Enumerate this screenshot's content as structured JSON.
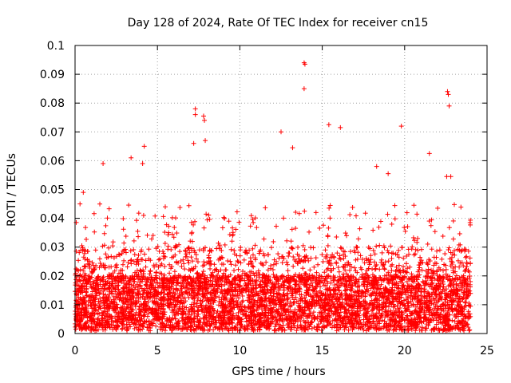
{
  "chart_data": {
    "type": "scatter",
    "title": "Day 128 of 2024, Rate Of TEC Index for receiver cn15",
    "xlabel": "GPS time / hours",
    "ylabel": "ROTI / TECUs",
    "xlim": [
      0,
      25
    ],
    "ylim": [
      0,
      0.1
    ],
    "grid": true,
    "marker": "plus",
    "color": "#ff0000",
    "x_ticks": [
      0,
      5,
      10,
      15,
      20,
      25
    ],
    "x_tick_labels": [
      "0",
      "5",
      "10",
      "15",
      "20",
      "25"
    ],
    "y_ticks": [
      0,
      0.01,
      0.02,
      0.03,
      0.04,
      0.05,
      0.06,
      0.07,
      0.08,
      0.09,
      0.1
    ],
    "y_tick_labels": [
      "0",
      "0.01",
      "0.02",
      "0.03",
      "0.04",
      "0.05",
      "0.06",
      "0.07",
      "0.08",
      "0.09",
      "0.1"
    ],
    "data_extent_hours": [
      0,
      24
    ],
    "notable_points": [
      {
        "x": 13.9,
        "y": 0.094
      },
      {
        "x": 13.95,
        "y": 0.0935
      },
      {
        "x": 13.9,
        "y": 0.085
      },
      {
        "x": 22.6,
        "y": 0.084
      },
      {
        "x": 22.65,
        "y": 0.083
      },
      {
        "x": 22.7,
        "y": 0.079
      },
      {
        "x": 7.3,
        "y": 0.078
      },
      {
        "x": 7.3,
        "y": 0.076
      },
      {
        "x": 7.8,
        "y": 0.0755
      },
      {
        "x": 7.85,
        "y": 0.074
      },
      {
        "x": 19.8,
        "y": 0.072
      },
      {
        "x": 15.4,
        "y": 0.0725
      },
      {
        "x": 16.1,
        "y": 0.0715
      },
      {
        "x": 12.5,
        "y": 0.07
      },
      {
        "x": 7.2,
        "y": 0.066
      },
      {
        "x": 7.9,
        "y": 0.067
      },
      {
        "x": 4.2,
        "y": 0.065
      },
      {
        "x": 13.2,
        "y": 0.0645
      },
      {
        "x": 21.5,
        "y": 0.0625
      },
      {
        "x": 3.4,
        "y": 0.061
      },
      {
        "x": 4.1,
        "y": 0.059
      },
      {
        "x": 1.7,
        "y": 0.059
      },
      {
        "x": 18.3,
        "y": 0.058
      },
      {
        "x": 22.55,
        "y": 0.0545
      },
      {
        "x": 22.8,
        "y": 0.0545
      },
      {
        "x": 19.0,
        "y": 0.0555
      },
      {
        "x": 0.5,
        "y": 0.049
      },
      {
        "x": 0.3,
        "y": 0.045
      }
    ],
    "bulk_description_values": {
      "baseline_min": 0.001,
      "dense_band_top": 0.02,
      "typical_upper_scatter": 0.045
    }
  }
}
